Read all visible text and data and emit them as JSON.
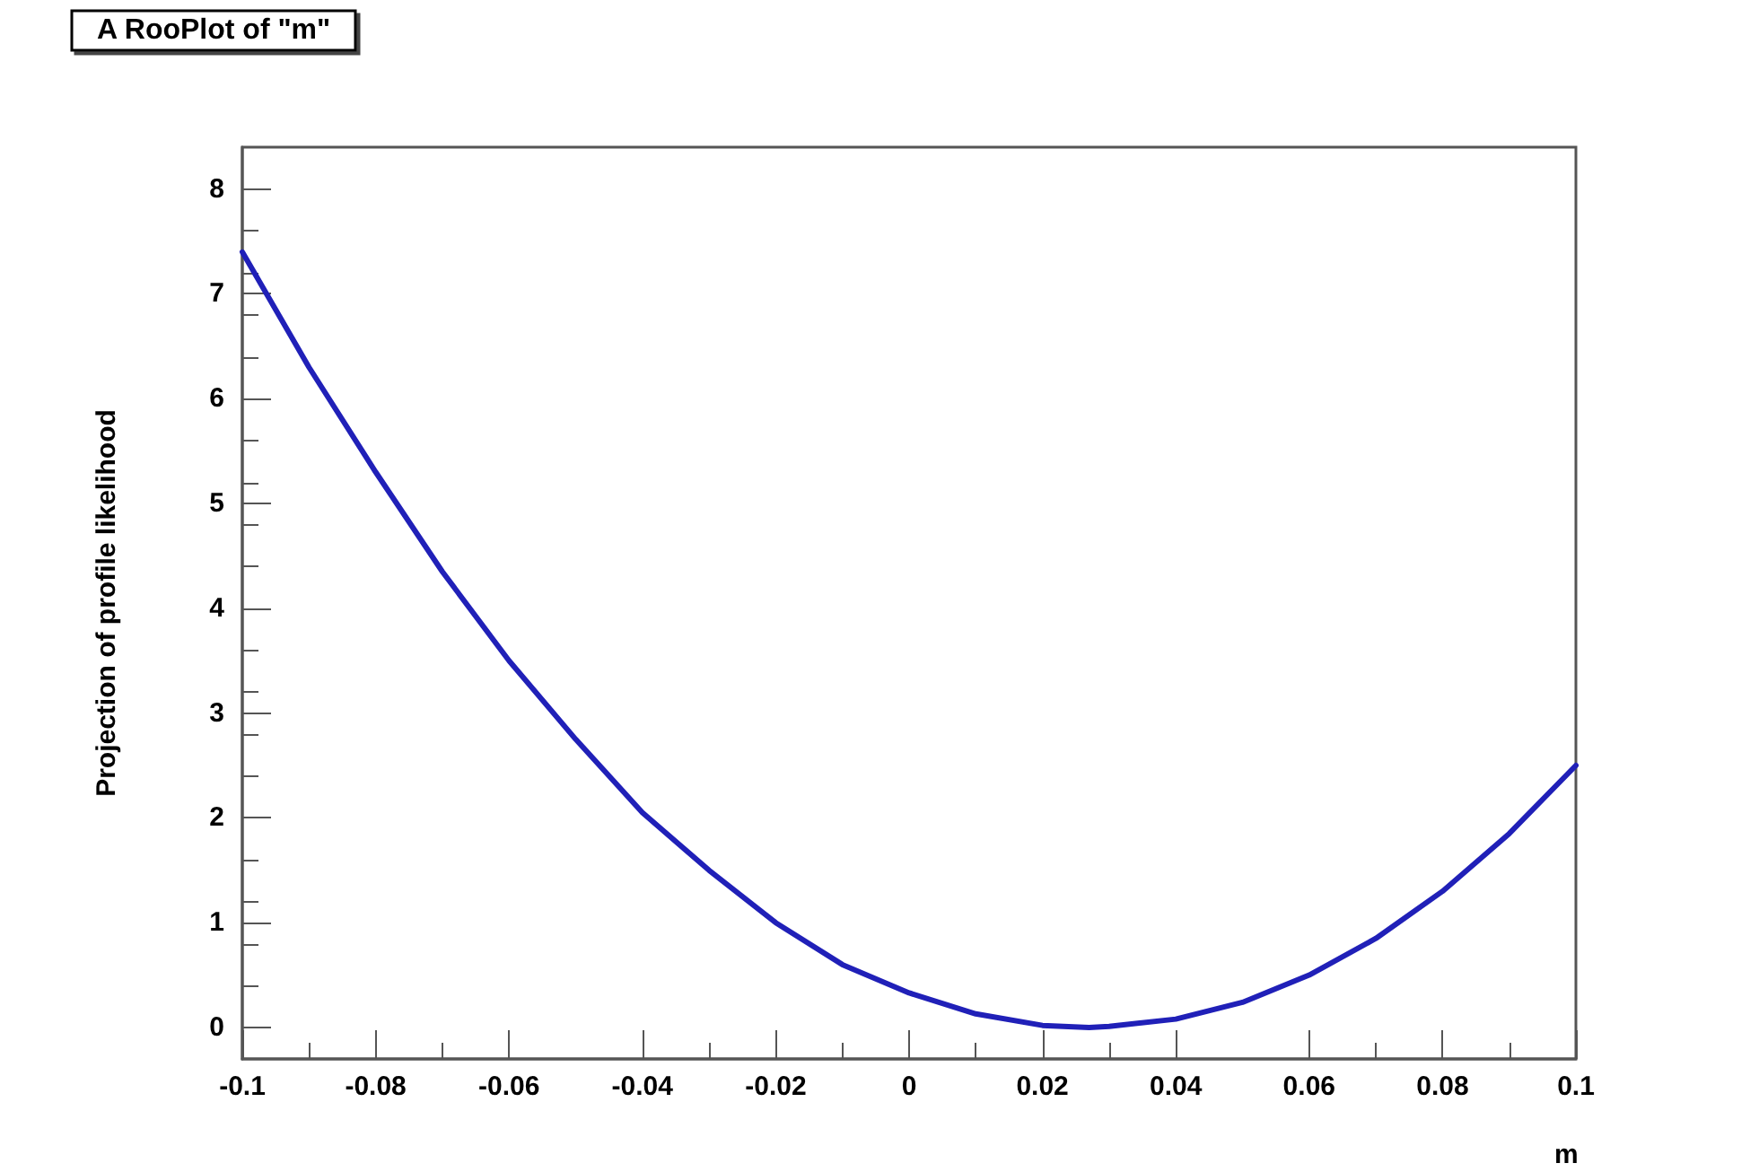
{
  "chart_data": {
    "type": "line",
    "title": "A RooPlot of \"m\"",
    "xlabel": "m",
    "ylabel": "Projection of profile likelihood",
    "x": [
      -0.1,
      -0.09,
      -0.08,
      -0.07,
      -0.06,
      -0.05,
      -0.04,
      -0.03,
      -0.02,
      -0.01,
      0,
      0.01,
      0.02,
      0.027,
      0.03,
      0.04,
      0.05,
      0.06,
      0.07,
      0.08,
      0.09,
      0.1
    ],
    "series": [
      {
        "color": "#2020b8",
        "values": [
          7.4,
          6.3,
          5.3,
          4.35,
          3.5,
          2.75,
          2.05,
          1.5,
          1.0,
          0.6,
          0.33,
          0.13,
          0.02,
          0,
          0.01,
          0.08,
          0.24,
          0.5,
          0.85,
          1.3,
          1.85,
          2.5
        ]
      }
    ],
    "xlim": [
      -0.1,
      0.1
    ],
    "xticks": [
      -0.1,
      -0.08,
      -0.06,
      -0.04,
      -0.02,
      0,
      0.02,
      0.04,
      0.06,
      0.08,
      0.1
    ],
    "ylim": [
      -0.3,
      8.4
    ],
    "yticks": [
      0,
      1,
      2,
      3,
      4,
      5,
      6,
      7,
      8
    ],
    "marker": "none",
    "line_style": "solid"
  }
}
